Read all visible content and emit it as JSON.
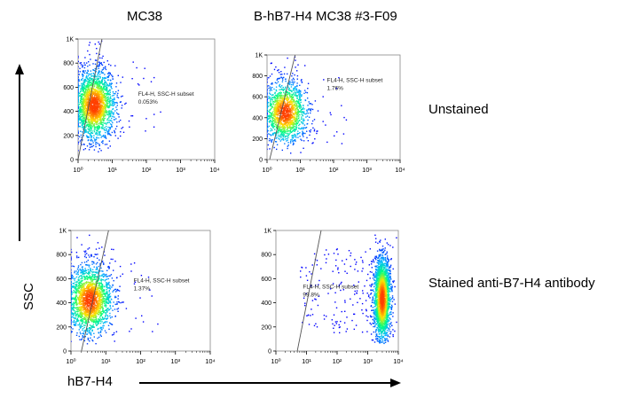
{
  "columns": [
    "MC38",
    "B-hB7-H4 MC38 #3-F09"
  ],
  "rows": [
    "Unstained",
    "Stained anti-B7-H4 antibody"
  ],
  "axes": {
    "y_title": "SSC",
    "x_title": "hB7-H4"
  },
  "colors": {
    "plot_bg": "#ffffff",
    "axis": "#000000",
    "gate": "#555555",
    "density": [
      "#0000ff",
      "#00b8ff",
      "#00ff80",
      "#ffe600",
      "#ff4000"
    ]
  },
  "chart_data": [
    {
      "type": "scatter",
      "style": "pseudocolor-density",
      "sample": "MC38",
      "condition": "Unstained",
      "x_scale": "log",
      "xlim": [
        1,
        10000
      ],
      "x_ticks": [
        "10⁰",
        "10¹",
        "10²",
        "10³",
        "10⁴"
      ],
      "ylim": [
        0,
        1000
      ],
      "y_ticks": [
        "0",
        "200",
        "400",
        "600",
        "800",
        "1K"
      ],
      "gate": {
        "name": "FL4-H, SSC-H subset",
        "percent": "0.053%"
      },
      "population": {
        "x_center": 3,
        "x_log_sd": 0.3,
        "y_center": 450,
        "y_sd": 140
      }
    },
    {
      "type": "scatter",
      "style": "pseudocolor-density",
      "sample": "B-hB7-H4 MC38 #3-F09",
      "condition": "Unstained",
      "x_scale": "log",
      "xlim": [
        1,
        10000
      ],
      "x_ticks": [
        "10⁰",
        "10¹",
        "10²",
        "10³",
        "10⁴"
      ],
      "ylim": [
        0,
        1000
      ],
      "y_ticks": [
        "0",
        "200",
        "400",
        "600",
        "800",
        "1K"
      ],
      "gate": {
        "name": "FL4-H, SSC-H subset",
        "percent": "1.76%"
      },
      "population": {
        "x_center": 3.5,
        "x_log_sd": 0.32,
        "y_center": 450,
        "y_sd": 140
      }
    },
    {
      "type": "scatter",
      "style": "pseudocolor-density",
      "sample": "MC38",
      "condition": "Stained anti-B7-H4 antibody",
      "x_scale": "log",
      "xlim": [
        1,
        10000
      ],
      "x_ticks": [
        "10⁰",
        "10¹",
        "10²",
        "10³",
        "10⁴"
      ],
      "ylim": [
        0,
        1000
      ],
      "y_ticks": [
        "0",
        "200",
        "400",
        "600",
        "800",
        "1K"
      ],
      "gate": {
        "name": "FL4-H, SSC-H subset",
        "percent": "1.37%"
      },
      "population": {
        "x_center": 3.5,
        "x_log_sd": 0.32,
        "y_center": 420,
        "y_sd": 140
      }
    },
    {
      "type": "scatter",
      "style": "pseudocolor-density",
      "sample": "B-hB7-H4 MC38 #3-F09",
      "condition": "Stained anti-B7-H4 antibody",
      "x_scale": "log",
      "xlim": [
        1,
        10000
      ],
      "x_ticks": [
        "10⁰",
        "10¹",
        "10²",
        "10³",
        "10⁴"
      ],
      "ylim": [
        0,
        1000
      ],
      "y_ticks": [
        "0",
        "200",
        "400",
        "600",
        "800",
        "1K"
      ],
      "gate": {
        "name": "FL4-H, SSC-H subset",
        "percent": "99.8%"
      },
      "population": {
        "x_center": 3000,
        "x_log_sd": 0.14,
        "y_center": 430,
        "y_sd": 170
      }
    }
  ]
}
